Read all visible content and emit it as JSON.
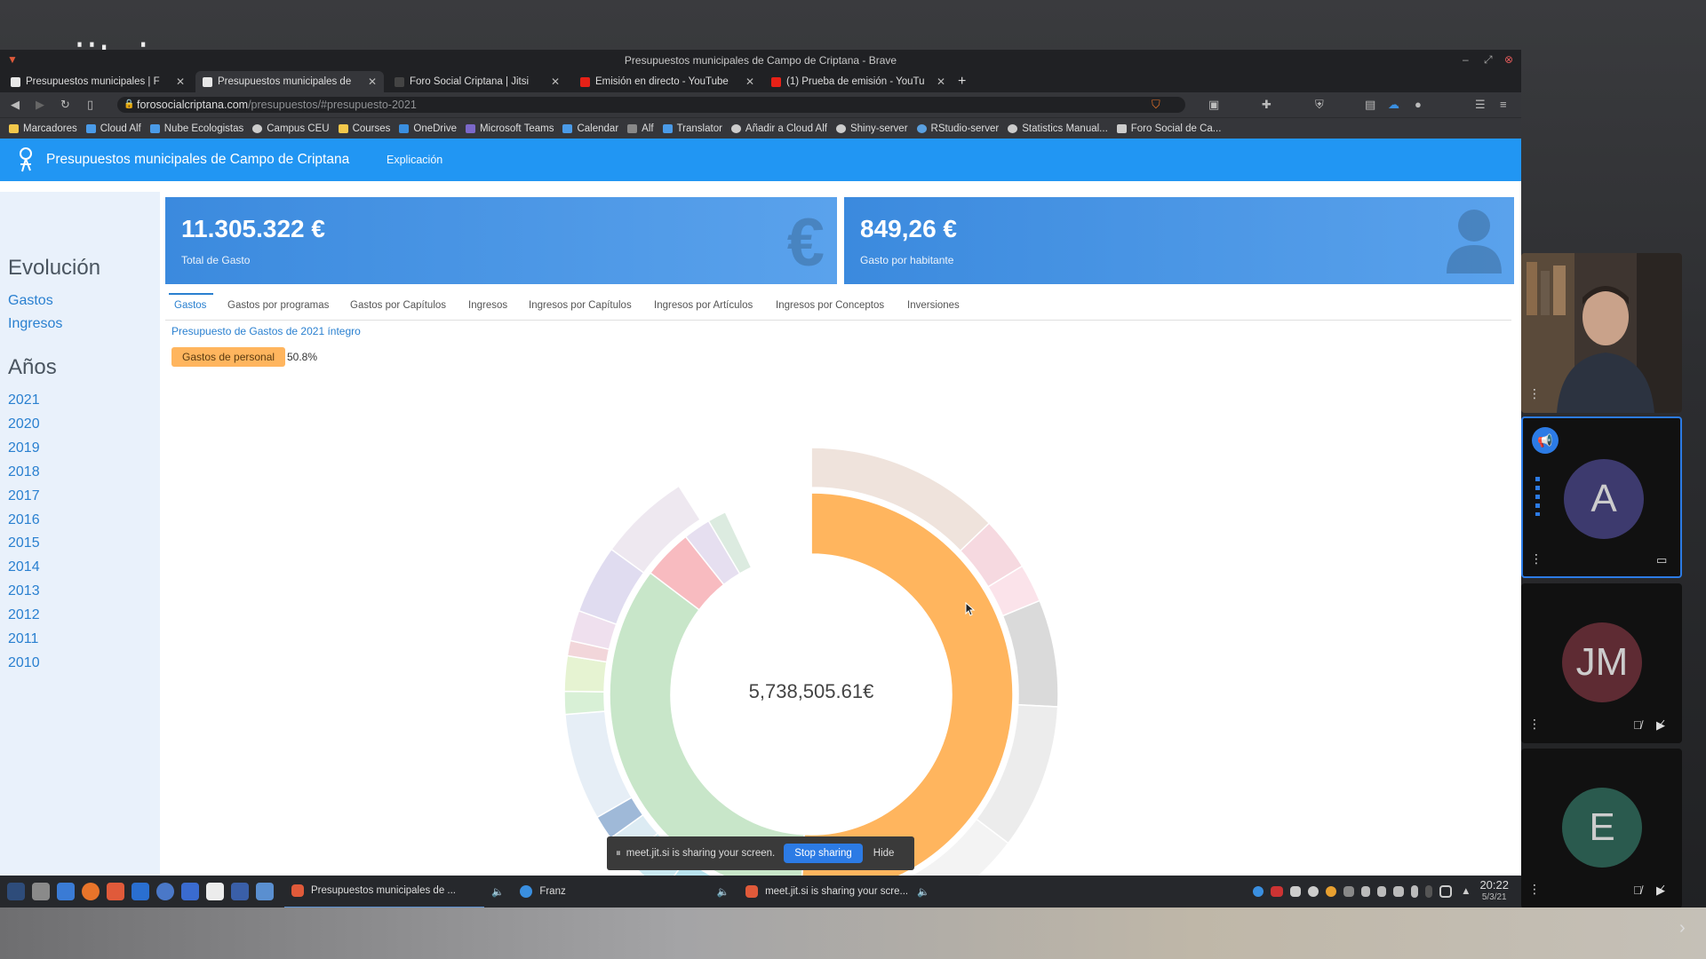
{
  "watermark": {
    "text": "jitsi"
  },
  "browser": {
    "title": "Presupuestos municipales de Campo de Criptana - Brave",
    "tabs": [
      {
        "label": "Presupuestos municipales | F",
        "color": "#e7e7e7"
      },
      {
        "label": "Presupuestos municipales de",
        "color": "#e7e7e7"
      },
      {
        "label": "Foro Social Criptana | Jitsi",
        "color": "#444"
      },
      {
        "label": "Emisión en directo - YouTube",
        "color": "#e62117"
      },
      {
        "label": "(1) Prueba de emisión - YouTu",
        "color": "#e62117"
      }
    ],
    "url_domain": "forosocialcriptana.com",
    "url_path": "/presupuestos/#presupuesto-2021",
    "bookmarks": [
      {
        "label": "Marcadores",
        "color": "#f2c84b"
      },
      {
        "label": "Cloud Alf",
        "color": "#4a9be8"
      },
      {
        "label": "Nube Ecologistas",
        "color": "#4a9be8"
      },
      {
        "label": "Campus CEU",
        "color": "#cccccc"
      },
      {
        "label": "Courses",
        "color": "#f2c84b"
      },
      {
        "label": "OneDrive",
        "color": "#3a8fe0"
      },
      {
        "label": "Microsoft Teams",
        "color": "#7b68c9"
      },
      {
        "label": "Calendar",
        "color": "#4a9be8"
      },
      {
        "label": "Alf",
        "color": "#888888"
      },
      {
        "label": "Translator",
        "color": "#4a9be8"
      },
      {
        "label": "Añadir a Cloud Alf",
        "color": "#cccccc"
      },
      {
        "label": "Shiny-server",
        "color": "#cccccc"
      },
      {
        "label": "RStudio-server",
        "color": "#5aa0e0"
      },
      {
        "label": "Statistics Manual...",
        "color": "#cccccc"
      },
      {
        "label": "Foro Social de Ca...",
        "color": "#cccccc"
      }
    ]
  },
  "app": {
    "brand": "Presupuestos municipales de Campo de Criptana",
    "nav_explicacion": "Explicación",
    "sidebar": {
      "evolucion": "Evolución",
      "links": [
        "Gastos",
        "Ingresos"
      ],
      "anios": "Años",
      "years": [
        "2021",
        "2020",
        "2019",
        "2018",
        "2017",
        "2016",
        "2015",
        "2014",
        "2013",
        "2012",
        "2011",
        "2010"
      ]
    },
    "cards": [
      {
        "value": "11.305.322 €",
        "label": "Total de Gasto",
        "icon": "euro-icon"
      },
      {
        "value": "849,26 €",
        "label": "Gasto por habitante",
        "icon": "person-icon"
      }
    ],
    "tabs": [
      "Gastos",
      "Gastos por programas",
      "Gastos por Capítulos",
      "Ingresos",
      "Ingresos por Capítulos",
      "Ingresos por Artículos",
      "Ingresos por Conceptos",
      "Inversiones"
    ],
    "subtitle": "Presupuesto de Gastos de 2021 íntegro",
    "badge_label": "Gastos de personal",
    "badge_pct": "50.8%",
    "center_value": "5,738,505.61€"
  },
  "chart_data": {
    "type": "pie",
    "title": "",
    "center_label": "5,738,505.61€",
    "inner_ring": {
      "values": [
        50.8,
        34.5,
        4.0,
        2.2,
        1.5,
        7.0
      ],
      "colors": [
        "#ffb55e",
        "#c8e6c9",
        "#f8bbc0",
        "#e6dff0",
        "#dcebe0",
        "#ffffff"
      ]
    },
    "outer_ring": {
      "values": [
        12.8,
        3.5,
        2.5,
        7.0,
        9.5,
        15.0,
        10.0,
        3.0,
        1.8,
        1.6,
        7.0,
        1.5,
        2.3,
        1.0,
        2.0,
        4.5,
        6.0,
        9.0
      ],
      "colors": [
        "#efe3dc",
        "#f6d9e0",
        "#fbe3ea",
        "#dadada",
        "#ececec",
        "#f3f3f3",
        "#b9e3ee",
        "#cbe9f2",
        "#dcebf3",
        "#9fb9d8",
        "#e6eef6",
        "#d8f0d6",
        "#e6f3d2",
        "#f2d6da",
        "#efe0ee",
        "#e0dcf0",
        "#eee8f0",
        "#ffffff"
      ]
    }
  },
  "share_banner": {
    "text": "meet.jit.si is sharing your screen.",
    "stop": "Stop sharing",
    "hide": "Hide"
  },
  "taskbar": {
    "task1": "Presupuestos municipales de ...",
    "task2": "Franz",
    "task3": "meet.jit.si is sharing your scre...",
    "time": "20:22",
    "date": "5/3/21"
  },
  "participants": [
    {
      "initials": "A",
      "color": "#3d3a6e"
    },
    {
      "initials": "JM",
      "color": "#5e2b33"
    },
    {
      "initials": "E",
      "color": "#2a5a4e"
    }
  ]
}
